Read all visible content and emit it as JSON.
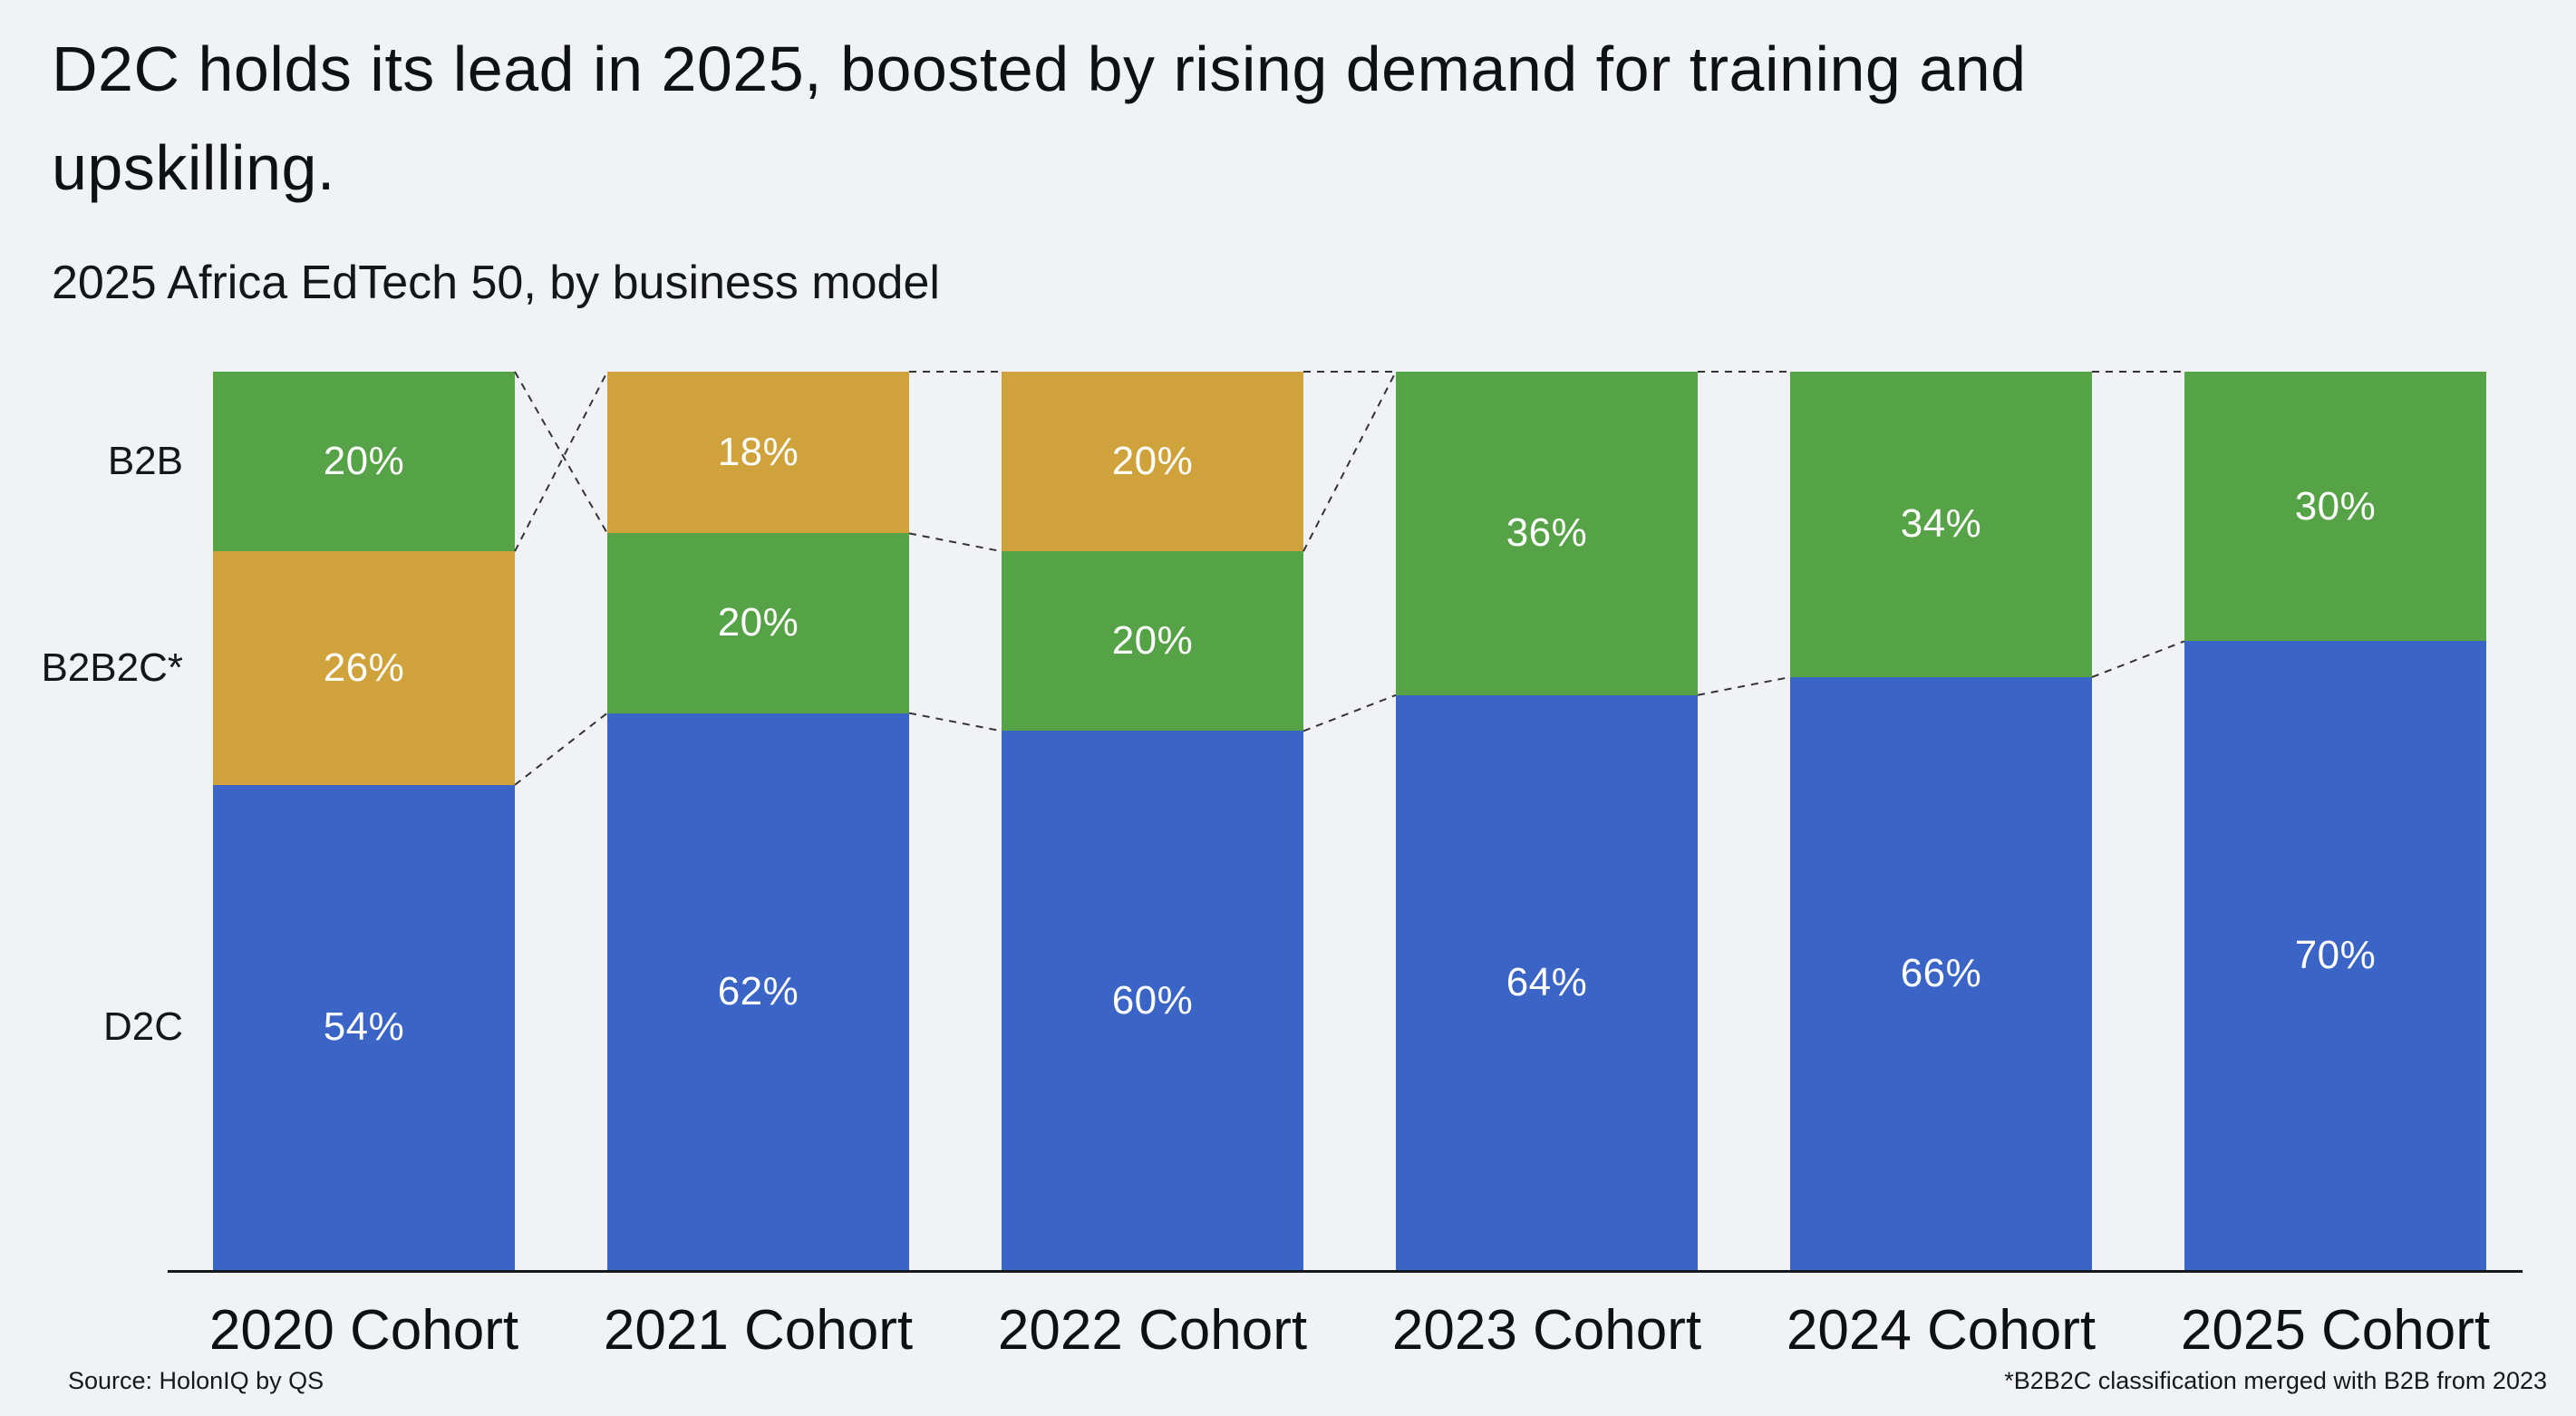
{
  "page": {
    "title_lines": [
      "D2C holds its lead in 2025, boosted by rising demand for training and",
      "upskilling."
    ],
    "subtitle": "2025 Africa EdTech 50, by business model",
    "source": "Source: HolonIQ by QS",
    "footnote": "*B2B2C classification merged with B2B from 2023"
  },
  "colors": {
    "background": "#f1f2f6",
    "b2b_green": "#55a346",
    "b2b2c_gold": "#d0a23c",
    "d2c_blue": "#3a65c7",
    "axis": "#15181c",
    "connector": "#333333",
    "bar_value_text": "#ffffff"
  },
  "chart_data": {
    "type": "bar",
    "variant": "100-percent-stacked-column",
    "unit": "%",
    "title": "2025 Africa EdTech 50, by business model",
    "categories": [
      "2020 Cohort",
      "2021 Cohort",
      "2022 Cohort",
      "2023 Cohort",
      "2024 Cohort",
      "2025 Cohort"
    ],
    "row_labels": [
      {
        "category": "B2B",
        "label": "B2B"
      },
      {
        "category": "B2B2C",
        "label": "B2B2C*"
      },
      {
        "category": "D2C",
        "label": "D2C"
      }
    ],
    "category_color_keys": {
      "B2B": "b2b_green",
      "B2B2C": "b2b2c_gold",
      "D2C": "d2c_blue"
    },
    "cohorts": [
      {
        "label": "2020 Cohort",
        "segments": [
          {
            "category": "B2B",
            "value": 20
          },
          {
            "category": "B2B2C",
            "value": 26
          },
          {
            "category": "D2C",
            "value": 54
          }
        ]
      },
      {
        "label": "2021 Cohort",
        "segments": [
          {
            "category": "B2B2C",
            "value": 18
          },
          {
            "category": "B2B",
            "value": 20
          },
          {
            "category": "D2C",
            "value": 62
          }
        ]
      },
      {
        "label": "2022 Cohort",
        "segments": [
          {
            "category": "B2B2C",
            "value": 20
          },
          {
            "category": "B2B",
            "value": 20
          },
          {
            "category": "D2C",
            "value": 60
          }
        ]
      },
      {
        "label": "2023 Cohort",
        "segments": [
          {
            "category": "B2B",
            "value": 36
          },
          {
            "category": "D2C",
            "value": 64
          }
        ]
      },
      {
        "label": "2024 Cohort",
        "segments": [
          {
            "category": "B2B",
            "value": 34
          },
          {
            "category": "D2C",
            "value": 66
          }
        ]
      },
      {
        "label": "2025 Cohort",
        "segments": [
          {
            "category": "B2B",
            "value": 30
          },
          {
            "category": "D2C",
            "value": 70
          }
        ]
      }
    ],
    "ylim": [
      0,
      100
    ],
    "grid": false,
    "legend": "row labels at left, aligned to first column segments"
  }
}
